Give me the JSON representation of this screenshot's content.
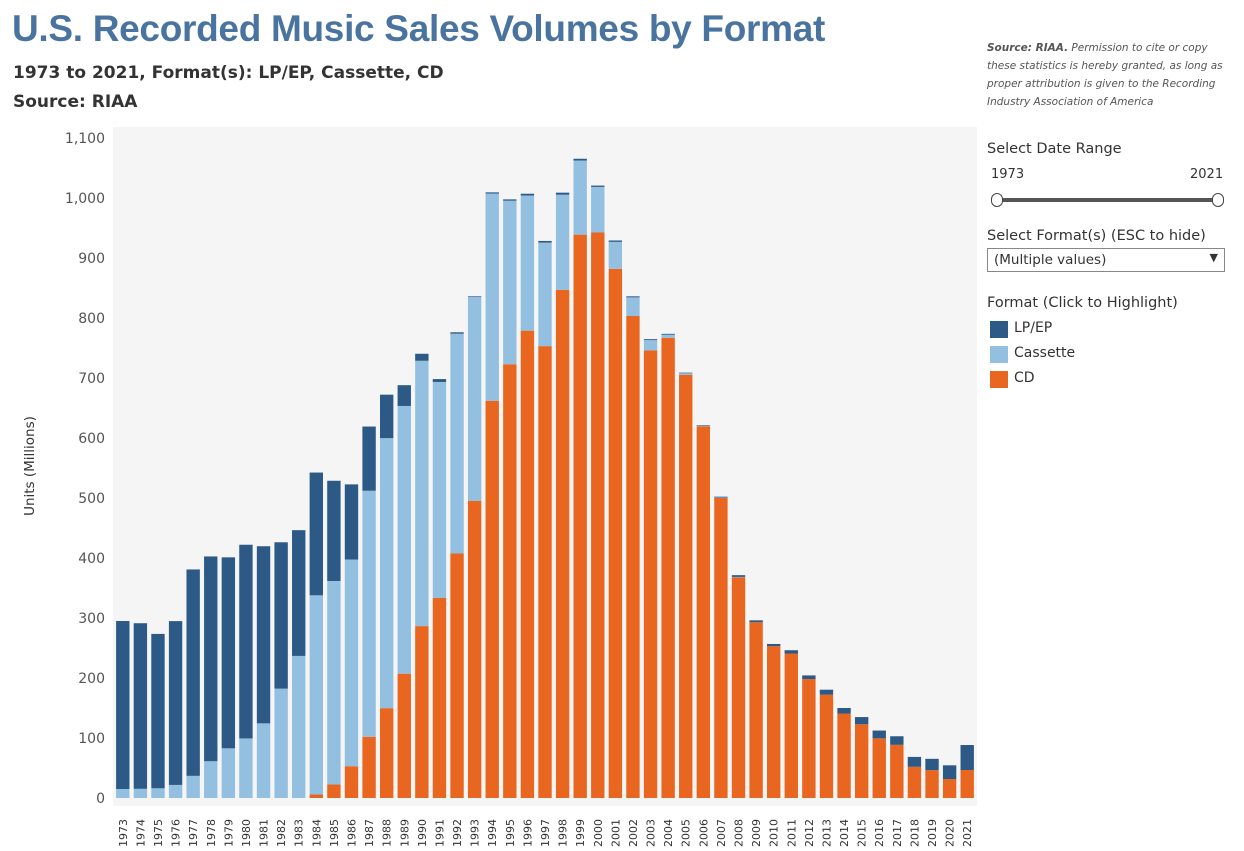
{
  "header": {
    "title": "U.S. Recorded Music Sales Volumes by Format",
    "subtitle": "1973 to 2021, Format(s): LP/EP, Cassette, CD",
    "source": "Source: RIAA"
  },
  "note": {
    "bold": "Source: RIAA.",
    "text": " Permission to cite or copy these statistics is hereby granted, as long as proper attribution is given to the Recording Industry Association of America"
  },
  "controls": {
    "date_range_label": "Select Date Range",
    "range_start": "1973",
    "range_end": "2021",
    "format_label": "Select Format(s) (ESC to hide)",
    "format_value": "(Multiple values)",
    "legend_title": "Format (Click to Highlight)"
  },
  "colors": {
    "LP/EP": "#2c5985",
    "Cassette": "#93bfe0",
    "CD": "#e8661f",
    "plot_bg": "#f5f5f5"
  },
  "chart_data": {
    "type": "bar",
    "stacked": true,
    "ylabel": "Units (Millions)",
    "ylim": [
      0,
      1100
    ],
    "yticks": [
      0,
      100,
      200,
      300,
      400,
      500,
      600,
      700,
      800,
      900,
      1000,
      1100
    ],
    "ytick_labels": [
      "0",
      "100",
      "200",
      "300",
      "400",
      "500",
      "600",
      "700",
      "800",
      "900",
      "1,000",
      "1,100"
    ],
    "grid": false,
    "legend_position": "right",
    "categories": [
      "1973",
      "1974",
      "1975",
      "1976",
      "1977",
      "1978",
      "1979",
      "1980",
      "1981",
      "1982",
      "1983",
      "1984",
      "1985",
      "1986",
      "1987",
      "1988",
      "1989",
      "1990",
      "1991",
      "1992",
      "1993",
      "1994",
      "1995",
      "1996",
      "1997",
      "1998",
      "1999",
      "2000",
      "2001",
      "2002",
      "2003",
      "2004",
      "2005",
      "2006",
      "2007",
      "2008",
      "2009",
      "2010",
      "2011",
      "2012",
      "2013",
      "2014",
      "2015",
      "2016",
      "2017",
      "2018",
      "2019",
      "2020",
      "2021"
    ],
    "series": [
      {
        "name": "CD",
        "values": [
          0,
          0,
          0,
          0,
          0,
          0,
          0,
          0,
          0,
          0,
          0,
          5.8,
          22.6,
          53,
          102.1,
          149.7,
          207.2,
          286.5,
          333.3,
          407.5,
          495.4,
          662.1,
          722.9,
          778.9,
          753.1,
          847,
          938.9,
          942.5,
          881.9,
          803.3,
          746,
          767,
          705.4,
          619.7,
          500.5,
          368.4,
          292.9,
          253,
          240.8,
          198.2,
          172.2,
          140.8,
          122.9,
          99.4,
          88.6,
          52,
          46.5,
          31.6,
          46.6
        ]
      },
      {
        "name": "Cassette",
        "values": [
          15,
          15.3,
          16.2,
          21.8,
          36.9,
          61.3,
          82.8,
          99.3,
          124.4,
          182.3,
          236.8,
          332,
          339.1,
          344.5,
          410,
          450.1,
          446.2,
          442.2,
          360.1,
          366.4,
          339.5,
          345.4,
          272.6,
          225.3,
          172.6,
          158.5,
          123.6,
          76,
          45,
          31.1,
          17.2,
          5.2,
          2.5,
          0.7,
          0.4,
          0.1,
          0,
          0,
          0,
          0,
          0,
          0,
          0,
          0,
          0,
          0,
          0,
          0,
          0
        ]
      },
      {
        "name": "LP/EP",
        "values": [
          280,
          276,
          257.3,
          273,
          344,
          341.3,
          318.3,
          322.8,
          295.2,
          243.9,
          209.6,
          204.6,
          167,
          125.2,
          107,
          72.4,
          34.6,
          11.7,
          4.8,
          2.3,
          1.2,
          1.9,
          2.2,
          2.9,
          2.7,
          3.4,
          2.9,
          2.2,
          2.3,
          1.7,
          1.5,
          1.4,
          1,
          0.9,
          1.3,
          2.9,
          3.2,
          3.7,
          5.5,
          6.1,
          8.3,
          9.2,
          12,
          13,
          14.3,
          16.5,
          18.8,
          22.9,
          41.7
        ]
      }
    ]
  }
}
